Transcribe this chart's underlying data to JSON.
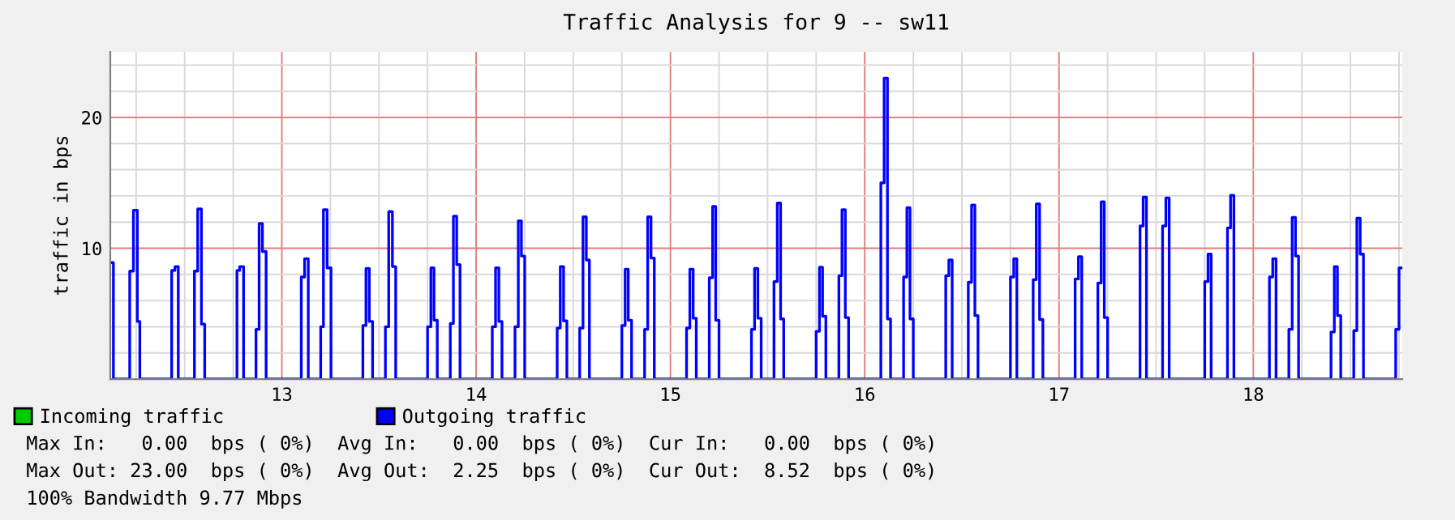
{
  "chart_data": {
    "type": "step",
    "title": "Traffic Analysis for 9 -- sw11",
    "ylabel": "traffic in bps",
    "xlim": [
      12.117,
      18.767
    ],
    "xticks": [
      {
        "value": 12.25,
        "label": null
      },
      {
        "value": 12.5,
        "label": null
      },
      {
        "value": 12.75,
        "label": null
      },
      13,
      {
        "value": 13.25,
        "label": null
      },
      {
        "value": 13.5,
        "label": null
      },
      {
        "value": 13.75,
        "label": null
      },
      14,
      {
        "value": 14.25,
        "label": null
      },
      {
        "value": 14.5,
        "label": null
      },
      {
        "value": 14.75,
        "label": null
      },
      15,
      {
        "value": 15.25,
        "label": null
      },
      {
        "value": 15.5,
        "label": null
      },
      {
        "value": 15.75,
        "label": null
      },
      16,
      {
        "value": 16.25,
        "label": null
      },
      {
        "value": 16.5,
        "label": null
      },
      {
        "value": 16.75,
        "label": null
      },
      17,
      {
        "value": 17.25,
        "label": null
      },
      {
        "value": 17.5,
        "label": null
      },
      {
        "value": 17.75,
        "label": null
      },
      18,
      {
        "value": 18.25,
        "label": null
      },
      {
        "value": 18.5,
        "label": null
      },
      {
        "value": 18.75,
        "label": null
      }
    ],
    "ylim": [
      0,
      25
    ],
    "yticks": [
      {
        "value": 2,
        "label": null
      },
      {
        "value": 4,
        "label": null
      },
      {
        "value": 6,
        "label": null
      },
      {
        "value": 8,
        "label": null
      },
      10,
      {
        "value": 12,
        "label": null
      },
      {
        "value": 14,
        "label": null
      },
      {
        "value": 16,
        "label": null
      },
      {
        "value": 18,
        "label": null
      },
      20,
      {
        "value": 22,
        "label": null
      },
      {
        "value": 24,
        "label": null
      }
    ],
    "grid": true,
    "legend": "bottom",
    "series": [
      {
        "name": "Incoming traffic",
        "color": "#00cc00",
        "values": [
          null,
          null
        ]
      },
      {
        "name": "Outgoing traffic",
        "color": "#0000ff",
        "x": [
          12.117,
          12.133,
          12.217,
          12.236,
          12.256,
          12.269,
          12.433,
          12.45,
          12.467,
          12.55,
          12.567,
          12.586,
          12.603,
          12.769,
          12.783,
          12.803,
          12.867,
          12.883,
          12.9,
          12.919,
          13.1,
          13.117,
          13.136,
          13.2,
          13.214,
          13.233,
          13.253,
          13.417,
          13.433,
          13.45,
          13.467,
          13.533,
          13.55,
          13.569,
          13.586,
          13.75,
          13.767,
          13.783,
          13.8,
          13.867,
          13.883,
          13.9,
          13.917,
          14.083,
          14.1,
          14.117,
          14.133,
          14.2,
          14.217,
          14.233,
          14.25,
          14.417,
          14.433,
          14.45,
          14.467,
          14.533,
          14.55,
          14.567,
          14.583,
          14.75,
          14.767,
          14.783,
          14.8,
          14.867,
          14.883,
          14.9,
          14.917,
          15.083,
          15.1,
          15.117,
          15.133,
          15.2,
          15.217,
          15.233,
          15.25,
          15.417,
          15.433,
          15.45,
          15.467,
          15.533,
          15.55,
          15.567,
          15.583,
          15.75,
          15.767,
          15.783,
          15.8,
          15.867,
          15.883,
          15.9,
          15.917,
          16.083,
          16.1,
          16.117,
          16.133,
          16.2,
          16.217,
          16.233,
          16.25,
          16.417,
          16.433,
          16.45,
          16.533,
          16.55,
          16.567,
          16.583,
          16.75,
          16.767,
          16.783,
          16.867,
          16.883,
          16.9,
          16.917,
          17.083,
          17.1,
          17.117,
          17.2,
          17.217,
          17.233,
          17.25,
          17.417,
          17.433,
          17.45,
          17.533,
          17.55,
          17.567,
          17.75,
          17.767,
          17.783,
          17.867,
          17.883,
          17.9,
          18.083,
          18.1,
          18.117,
          18.183,
          18.2,
          18.217,
          18.233,
          18.4,
          18.417,
          18.433,
          18.45,
          18.517,
          18.533,
          18.55,
          18.567,
          18.733,
          18.75,
          18.767
        ],
        "values": [
          8.9,
          0,
          8.25,
          12.9,
          4.4,
          0,
          8.3,
          8.6,
          0,
          8.25,
          13.0,
          4.2,
          0,
          8.3,
          8.6,
          0,
          3.8,
          11.9,
          9.75,
          0,
          7.8,
          9.2,
          0,
          4.0,
          12.95,
          8.5,
          0,
          4.1,
          8.45,
          4.4,
          0,
          4.0,
          12.8,
          8.6,
          0,
          4.0,
          8.5,
          4.5,
          0,
          4.25,
          12.45,
          8.75,
          0,
          4.0,
          8.5,
          4.4,
          0,
          4.0,
          12.1,
          9.4,
          0,
          3.9,
          8.6,
          4.45,
          0,
          3.9,
          12.4,
          9.1,
          0,
          4.1,
          8.4,
          4.5,
          0,
          3.8,
          12.4,
          9.25,
          0,
          3.9,
          8.4,
          4.65,
          0,
          7.75,
          13.2,
          4.5,
          0,
          3.8,
          8.45,
          4.65,
          0,
          7.45,
          13.45,
          4.6,
          0,
          3.65,
          8.55,
          4.8,
          0,
          7.9,
          12.95,
          4.7,
          0,
          15.0,
          23.0,
          4.6,
          0,
          7.8,
          13.1,
          4.6,
          0,
          7.9,
          9.1,
          0,
          7.4,
          13.3,
          4.85,
          0,
          7.8,
          9.2,
          0,
          7.6,
          13.4,
          4.55,
          0,
          7.65,
          9.35,
          0,
          7.35,
          13.55,
          4.7,
          0,
          11.7,
          13.9,
          0,
          11.7,
          13.85,
          0,
          7.45,
          9.55,
          0,
          11.55,
          14.05,
          0,
          7.8,
          9.2,
          0,
          3.8,
          12.35,
          9.4,
          0,
          3.6,
          8.6,
          4.85,
          0,
          3.7,
          12.3,
          9.55,
          0,
          3.8,
          8.5,
          8.5
        ]
      }
    ],
    "annotations": [
      "Max In:   0.00  bps ( 0%)  Avg In:   0.00  bps ( 0%)  Cur In:   0.00  bps ( 0%)",
      "Max Out: 23.00  bps ( 0%)  Avg Out:  2.25  bps ( 0%)  Cur Out:  8.52  bps ( 0%)",
      "100% Bandwidth 9.77 Mbps"
    ]
  }
}
